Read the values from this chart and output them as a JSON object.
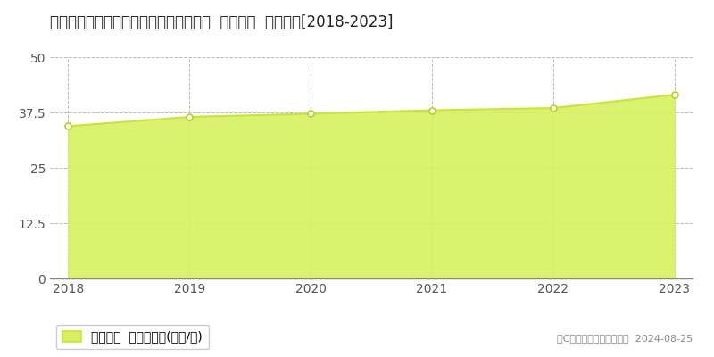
{
  "title": "宮城県多賀城市中央２丁目５０１番４外  基準地価  地価推移[2018-2023]",
  "years": [
    2018,
    2019,
    2020,
    2021,
    2022,
    2023
  ],
  "values": [
    34.4,
    36.5,
    37.2,
    38.0,
    38.5,
    41.5
  ],
  "line_color": "#c8e632",
  "fill_color": "#d8f060",
  "fill_alpha": 0.9,
  "marker_color": "white",
  "marker_edge_color": "#b8d020",
  "ylim": [
    0,
    50
  ],
  "yticks": [
    0,
    12.5,
    25,
    37.5,
    50
  ],
  "xlim": [
    2017.85,
    2023.15
  ],
  "background_color": "#ffffff",
  "grid_color": "#bbbbbb",
  "legend_label": "基準地価  平均坪単価(万円/坪)",
  "copyright_text": "（C）土地価格ドットコム  2024-08-25",
  "title_fontsize": 12,
  "tick_fontsize": 10,
  "legend_fontsize": 10
}
